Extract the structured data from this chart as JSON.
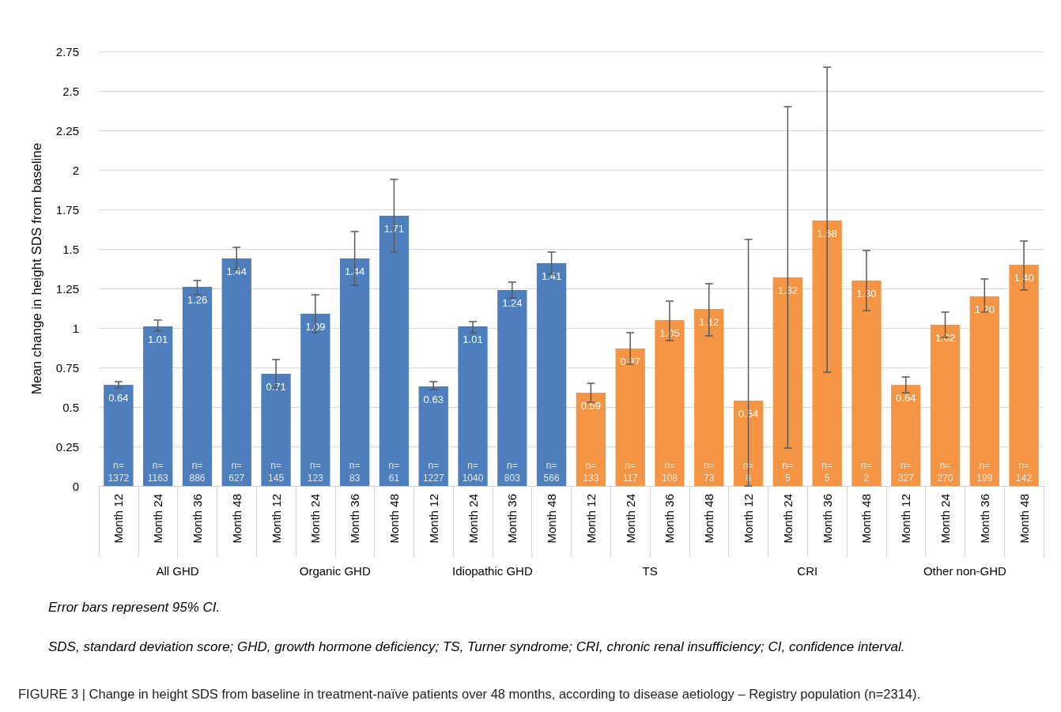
{
  "chart_data": {
    "type": "bar",
    "title": "FIGURE 3 | Change in height SDS from baseline in treatment-naïve patients over 48 months, according to disease aetiology – Registry population (n=2314).",
    "subtitle": "Error bars represent 95% CI.",
    "ylabel": "Mean change in height SDS from baseline",
    "categories": [
      "Month 12",
      "Month 24",
      "Month 36",
      "Month 48",
      "Month 12",
      "Month 24",
      "Month 36",
      "Month 48",
      "Month 12",
      "Month 24",
      "Month 36",
      "Month 48",
      "Month 12",
      "Month 24",
      "Month 36",
      "Month 48",
      "Month 12",
      "Month 24",
      "Month 36",
      "Month 48",
      "Month 12",
      "Month 24",
      "Month 36",
      "Month 48"
    ],
    "values": [
      0.64,
      1.01,
      1.26,
      1.44,
      0.71,
      1.09,
      1.44,
      1.71,
      0.63,
      1.01,
      1.24,
      1.41,
      0.59,
      0.87,
      1.05,
      1.12,
      0.54,
      1.32,
      1.68,
      1.3,
      0.64,
      1.02,
      1.2,
      1.4
    ],
    "value_labels": [
      "0.64",
      "1.01",
      "1.26",
      "1.44",
      "0.71",
      "1.09",
      "1.44",
      "1.71",
      "0.63",
      "1.01",
      "1.24",
      "1.41",
      "0.59",
      "0.87",
      "1.05",
      "1.12",
      "0.54",
      "1.32",
      "1.68",
      "1.30",
      "0.64",
      "1.02",
      "1.20",
      "1.40"
    ],
    "colors": [
      "#4e7fbc",
      "#4e7fbc",
      "#4e7fbc",
      "#4e7fbc",
      "#4e7fbc",
      "#4e7fbc",
      "#4e7fbc",
      "#4e7fbc",
      "#4e7fbc",
      "#4e7fbc",
      "#4e7fbc",
      "#4e7fbc",
      "#f39545",
      "#f39545",
      "#f39545",
      "#f39545",
      "#f39545",
      "#f39545",
      "#f39545",
      "#f39545",
      "#f39545",
      "#f39545",
      "#f39545",
      "#f39545"
    ],
    "errors": [
      [
        0.62,
        0.66
      ],
      [
        0.98,
        1.05
      ],
      [
        1.21,
        1.3
      ],
      [
        1.37,
        1.51
      ],
      [
        0.62,
        0.8
      ],
      [
        0.97,
        1.21
      ],
      [
        1.27,
        1.61
      ],
      [
        1.48,
        1.94
      ],
      [
        0.61,
        0.66
      ],
      [
        0.97,
        1.04
      ],
      [
        1.19,
        1.29
      ],
      [
        1.34,
        1.48
      ],
      [
        0.53,
        0.65
      ],
      [
        0.77,
        0.97
      ],
      [
        0.92,
        1.17
      ],
      [
        0.95,
        1.28
      ],
      [
        0,
        1.56
      ],
      [
        0.24,
        2.4
      ],
      [
        0.72,
        2.65
      ],
      [
        1.11,
        1.49
      ],
      [
        0.59,
        0.69
      ],
      [
        0.94,
        1.1
      ],
      [
        1.1,
        1.31
      ],
      [
        1.24,
        1.55
      ]
    ],
    "ylim": [
      0,
      2.75
    ],
    "yticks": [
      0,
      0.25,
      0.5,
      0.75,
      1,
      1.25,
      1.5,
      1.75,
      2,
      2.25,
      2.5,
      2.75
    ],
    "grid": "y",
    "annotations": [
      {
        "text": "n=\n1372",
        "y": 0
      },
      {
        "text": "n=\n1163",
        "y": 0
      },
      {
        "text": "n=\n886",
        "y": 0
      },
      {
        "text": "n=\n627",
        "y": 0
      },
      {
        "text": "n=\n145",
        "y": 0
      },
      {
        "text": "n=\n123",
        "y": 0
      },
      {
        "text": "n=\n83",
        "y": 0
      },
      {
        "text": "n=\n61",
        "y": 0
      },
      {
        "text": "n=\n1227",
        "y": 0
      },
      {
        "text": "n=\n1040",
        "y": 0
      },
      {
        "text": "n=\n803",
        "y": 0
      },
      {
        "text": "n=\n566",
        "y": 0
      },
      {
        "text": "n=\n133",
        "y": 0
      },
      {
        "text": "n=\n117",
        "y": 0
      },
      {
        "text": "n=\n108",
        "y": 0
      },
      {
        "text": "n=\n73",
        "y": 0
      },
      {
        "text": "n=\n6",
        "y": 0
      },
      {
        "text": "n=\n5",
        "y": 0
      },
      {
        "text": "n=\n5",
        "y": 0
      },
      {
        "text": "n=\n2",
        "y": 0
      },
      {
        "text": "n=\n327",
        "y": 0
      },
      {
        "text": "n=\n270",
        "y": 0
      },
      {
        "text": "n=\n199",
        "y": 0
      },
      {
        "text": "n=\n142",
        "y": 0
      },
      "All GHD",
      "Organic GHD",
      "Idiopathic GHD",
      "TS",
      "CRI",
      "Other non-GHD",
      "SDS, standard deviation score; GHD, growth hormone deficiency; TS, Turner syndrome; CRI, chronic renal insufficiency; CI, confidence interval."
    ]
  }
}
